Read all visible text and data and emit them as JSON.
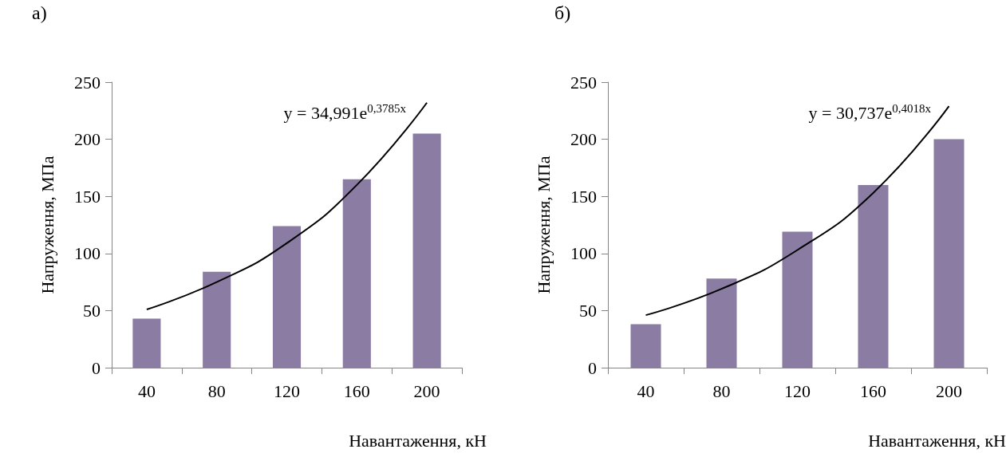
{
  "chart_data": [
    {
      "type": "bar",
      "title": "а)",
      "xlabel": "Навантаження, кН",
      "ylabel": "Напруження, МПа",
      "categories": [
        "40",
        "80",
        "120",
        "160",
        "200"
      ],
      "ylim": [
        0,
        250
      ],
      "yticks": [
        0,
        50,
        100,
        150,
        200,
        250
      ],
      "annotations": [
        "y = 34,991e$^{0,3785x}$"
      ],
      "series": [
        {
          "color": "#8a7ca3",
          "values": [
            43,
            84,
            124,
            165,
            205
          ]
        },
        {
          "type": "line",
          "color": "#000000",
          "marker": "none",
          "values": [
            51,
            75,
            109,
            160,
            232
          ]
        }
      ]
    },
    {
      "type": "bar",
      "title": "б)",
      "xlabel": "Навантаження, кН",
      "ylabel": "Напруження, МПа",
      "categories": [
        "40",
        "80",
        "120",
        "160",
        "200"
      ],
      "ylim": [
        0,
        250
      ],
      "yticks": [
        0,
        50,
        100,
        150,
        200,
        250
      ],
      "annotations": [
        "y = 30,737e$^{0,4018x}$"
      ],
      "series": [
        {
          "color": "#8a7ca3",
          "values": [
            38,
            78,
            119,
            160,
            200
          ]
        },
        {
          "type": "line",
          "color": "#000000",
          "marker": "none",
          "values": [
            46,
            69,
            103,
            153,
            229
          ]
        }
      ]
    }
  ]
}
